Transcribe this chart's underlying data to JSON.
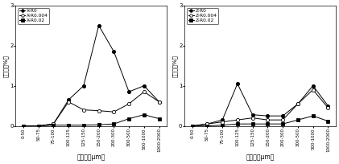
{
  "x_labels": [
    "0-50",
    "50-75",
    "75-100",
    "100-125",
    "125-150",
    "150-200",
    "200-300",
    "300-500",
    "500-1000",
    "1000-2000"
  ],
  "left_chart": {
    "ylabel": "空気量（%）",
    "xlabel": "気泡径（μm）",
    "series": [
      {
        "label": "X-R0",
        "marker": "o",
        "markerfacecolor": "black",
        "color": "black",
        "values": [
          0.0,
          0.0,
          0.05,
          0.65,
          1.0,
          2.5,
          1.85,
          0.85,
          1.0,
          0.6
        ]
      },
      {
        "label": "X-R0.004",
        "marker": "o",
        "markerfacecolor": "white",
        "color": "black",
        "values": [
          0.0,
          0.0,
          0.05,
          0.6,
          0.4,
          0.38,
          0.35,
          0.55,
          0.85,
          0.6
        ]
      },
      {
        "label": "X-R0.02",
        "marker": "s",
        "markerfacecolor": "black",
        "color": "black",
        "values": [
          0.0,
          0.0,
          0.02,
          0.02,
          0.02,
          0.03,
          0.05,
          0.18,
          0.28,
          0.18
        ]
      }
    ],
    "ylim": [
      0,
      3.0
    ],
    "yticks": [
      0.0,
      1.0,
      2.0,
      3.0
    ]
  },
  "right_chart": {
    "ylabel": "空気量（%）",
    "xlabel": "気泡径（μm）",
    "series": [
      {
        "label": "Z-R0",
        "marker": "o",
        "markerfacecolor": "black",
        "color": "black",
        "values": [
          0.0,
          0.05,
          0.15,
          1.05,
          0.28,
          0.25,
          0.25,
          0.55,
          1.0,
          0.5
        ]
      },
      {
        "label": "Z-R0.004",
        "marker": "o",
        "markerfacecolor": "white",
        "color": "black",
        "values": [
          0.0,
          0.05,
          0.1,
          0.15,
          0.2,
          0.15,
          0.15,
          0.55,
          0.9,
          0.45
        ]
      },
      {
        "label": "Z-R0.02",
        "marker": "s",
        "markerfacecolor": "black",
        "color": "black",
        "values": [
          0.0,
          0.0,
          0.02,
          0.05,
          0.05,
          0.05,
          0.05,
          0.15,
          0.25,
          0.12
        ]
      }
    ],
    "ylim": [
      0,
      3.0
    ],
    "yticks": [
      0.0,
      1.0,
      2.0,
      3.0
    ]
  },
  "figsize": [
    4.21,
    2.04
  ],
  "dpi": 100
}
